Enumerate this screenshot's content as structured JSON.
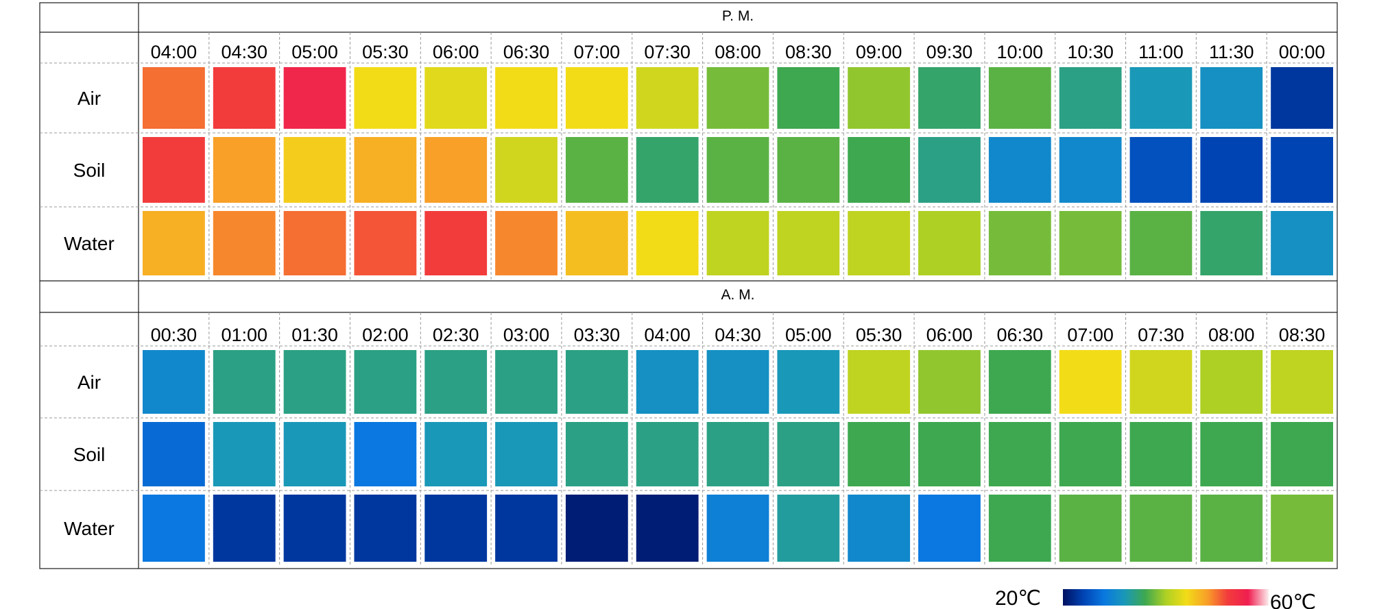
{
  "colorbar": {
    "min_label": "20℃",
    "max_label": "60℃",
    "min_value": 20,
    "max_value": 60
  },
  "colors": {
    "scale": [
      "#001060",
      "#0044b4",
      "#0a78e0",
      "#1a98b8",
      "#3ea850",
      "#aed024",
      "#f2dc18",
      "#f8a028",
      "#f23c3c",
      "#f01e50",
      "#fcecec"
    ]
  },
  "panels": [
    {
      "period": "P. M.",
      "times": [
        "04:00",
        "04:30",
        "05:00",
        "05:30",
        "06:00",
        "06:30",
        "07:00",
        "07:30",
        "08:00",
        "08:30",
        "09:00",
        "09:30",
        "10:00",
        "10:30",
        "11:00",
        "11:30",
        "00:00"
      ],
      "rows": [
        {
          "label": "Air",
          "values": [
            50,
            52,
            55,
            44,
            43,
            44,
            44,
            42,
            38,
            36,
            39,
            35,
            37,
            34,
            32,
            31,
            23
          ]
        },
        {
          "label": "Soil",
          "values": [
            52,
            48,
            45,
            47,
            48,
            42,
            37,
            35,
            37,
            37,
            36,
            34,
            30,
            30,
            25,
            24,
            24
          ]
        },
        {
          "label": "Water",
          "values": [
            47,
            49,
            50,
            51,
            52,
            49,
            46,
            44,
            41,
            41,
            41,
            40,
            38,
            38,
            37,
            35,
            31
          ]
        }
      ]
    },
    {
      "period": "A. M.",
      "times": [
        "00:30",
        "01:00",
        "01:30",
        "02:00",
        "02:30",
        "03:00",
        "03:30",
        "04:00",
        "04:30",
        "05:00",
        "05:30",
        "06:00",
        "06:30",
        "07:00",
        "07:30",
        "08:00",
        "08:30"
      ],
      "rows": [
        {
          "label": "Air",
          "values": [
            30,
            34,
            34,
            34,
            34,
            34,
            34,
            31,
            31,
            32,
            41,
            39,
            36,
            44,
            42,
            40,
            41
          ]
        },
        {
          "label": "Soil",
          "values": [
            27,
            32,
            32,
            28,
            32,
            32,
            34,
            34,
            34,
            34,
            36,
            36,
            36,
            36,
            36,
            36,
            36
          ]
        },
        {
          "label": "Water",
          "values": [
            28,
            23,
            23,
            23,
            23,
            23,
            21,
            21,
            29,
            33,
            30,
            28,
            36,
            37,
            37,
            37,
            38
          ]
        }
      ]
    }
  ]
}
